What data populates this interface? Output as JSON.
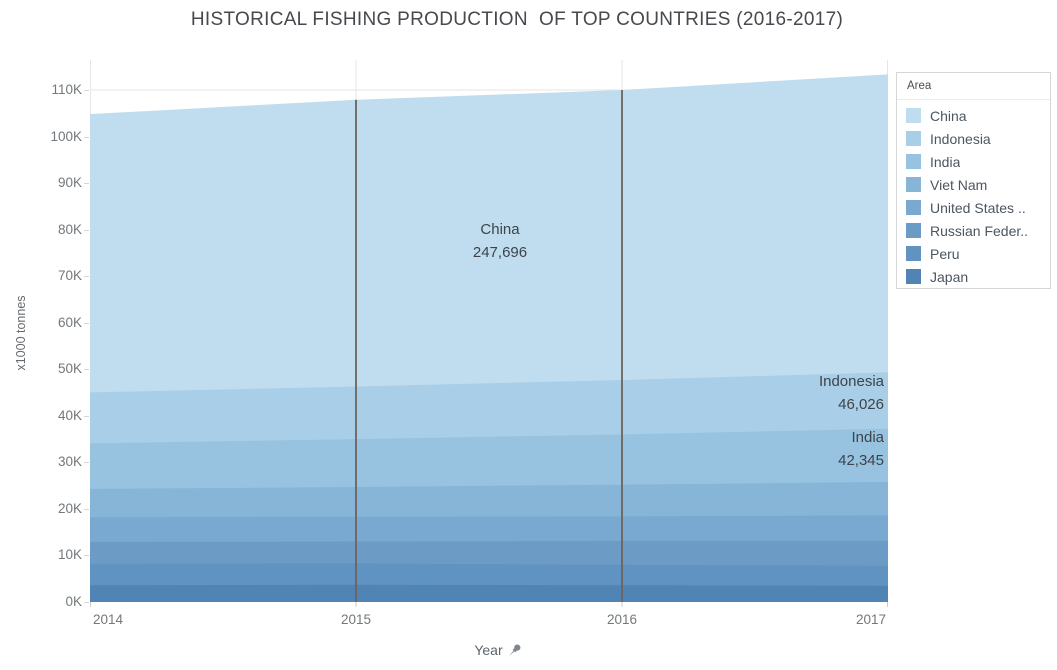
{
  "title": "HISTORICAL FISHING PRODUCTION  OF TOP COUNTRIES (2016-2017)",
  "y_axis": {
    "label": "x1000 tonnes",
    "ticks": [
      "0K",
      "10K",
      "20K",
      "30K",
      "40K",
      "50K",
      "60K",
      "70K",
      "80K",
      "90K",
      "100K",
      "110K"
    ],
    "tick_step": 10000
  },
  "x_axis": {
    "label": "Year",
    "ticks": [
      "2014",
      "2015",
      "2016",
      "2017"
    ]
  },
  "legend": {
    "title": "Area",
    "items": [
      {
        "label": "China",
        "color": "#c0ddef"
      },
      {
        "label": "Indonesia",
        "color": "#a9cfe8"
      },
      {
        "label": "India",
        "color": "#97c3e1"
      },
      {
        "label": "Viet Nam",
        "color": "#86b5d8"
      },
      {
        "label": "United States ..",
        "color": "#79a9d0"
      },
      {
        "label": "Russian Feder..",
        "color": "#6c9cc6"
      },
      {
        "label": "Peru",
        "color": "#6093c1"
      },
      {
        "label": "Japan",
        "color": "#5084b4"
      }
    ]
  },
  "annotations": {
    "china": {
      "name": "China",
      "value": "247,696"
    },
    "indonesia": {
      "name": "Indonesia",
      "value": "46,026"
    },
    "india": {
      "name": "India",
      "value": "42,345"
    }
  },
  "chart_data": {
    "type": "area",
    "stacked": true,
    "title": "HISTORICAL FISHING PRODUCTION  OF TOP COUNTRIES (2016-2017)",
    "xlabel": "Year",
    "ylabel": "x1000 tonnes",
    "x": [
      2014,
      2015,
      2016,
      2017
    ],
    "ylim": [
      0,
      116450
    ],
    "grid": true,
    "legend_position": "right",
    "series_order": "top-to-bottom",
    "series": [
      {
        "name": "China",
        "color": "#c0ddef",
        "values": [
          59800,
          61600,
          62300,
          63996
        ],
        "total_label": "247,696"
      },
      {
        "name": "Indonesia",
        "color": "#a9cfe8",
        "values": [
          10926,
          11300,
          11700,
          12100
        ],
        "total_label": "46,026"
      },
      {
        "name": "India",
        "color": "#97c3e1",
        "values": [
          9800,
          10300,
          10800,
          11445
        ],
        "total_label": "42,345"
      },
      {
        "name": "Viet Nam",
        "color": "#86b5d8",
        "values": [
          6100,
          6400,
          6800,
          7200
        ]
      },
      {
        "name": "United States ..",
        "color": "#79a9d0",
        "values": [
          5300,
          5300,
          5300,
          5400
        ]
      },
      {
        "name": "Russian Feder..",
        "color": "#6c9cc6",
        "values": [
          4700,
          4700,
          5100,
          5400
        ]
      },
      {
        "name": "Peru",
        "color": "#6093c1",
        "values": [
          4600,
          4600,
          4400,
          4300
        ]
      },
      {
        "name": "Japan",
        "color": "#5084b4",
        "values": [
          3600,
          3700,
          3600,
          3500
        ]
      }
    ],
    "reference_lines": {
      "at_x": [
        2015,
        2016
      ],
      "color": "#6e635a"
    }
  }
}
